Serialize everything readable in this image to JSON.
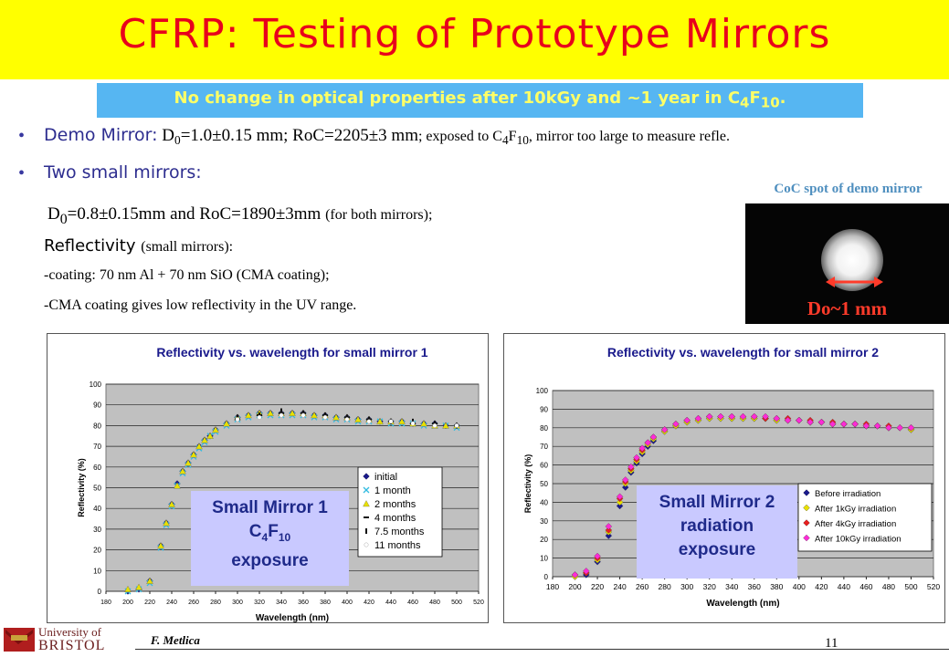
{
  "title": "CFRP: Testing of Prototype Mirrors",
  "banner": {
    "text": "No change in optical properties after  10kGy and ~1 year in ",
    "chem": "C",
    "chem_sub1": "4",
    "chem_f": "F",
    "chem_sub2": "10",
    "end": "."
  },
  "demo": {
    "label": "Demo Mirror:",
    "d0": " D",
    "d0_sub": "0",
    "rest1": "=1.0±0.15 mm; RoC=2205±3 mm",
    "rest2": "; exposed to C",
    "c_sub": "4",
    "f": "F",
    "f_sub": "10",
    "rest3": ", mirror too large to measure refle."
  },
  "small": {
    "label": "Two small mirrors:",
    "line1_a": "D",
    "line1_sub": "0",
    "line1_b": "=0.8±0.15mm and RoC=1890±3mm ",
    "line1_c": "(for both mirrors);",
    "line2_a": "Reflectivity ",
    "line2_b": "(small mirrors):",
    "line3": "-coating: 70 nm Al + 70 nm SiO (CMA coating);",
    "line4": "-CMA  coating gives low reflectivity in the UV range."
  },
  "coc": {
    "label": "CoC spot of demo mirror",
    "measure": "Do~1 mm"
  },
  "footer": {
    "author": "F. Metlica",
    "page": "11",
    "uni1": "University of",
    "uni2": "BRISTOL"
  },
  "chart1_label": {
    "l1": "Small Mirror 1",
    "l2a": "C",
    "l2s1": "4",
    "l2b": "F",
    "l2s2": "10",
    "l3": "exposure"
  },
  "chart2_label": {
    "l1": "Small Mirror 2",
    "l2": "radiation",
    "l3": "exposure"
  },
  "chart_data": [
    {
      "type": "scatter",
      "title": "Reflectivity vs. wavelength for small mirror 1",
      "xlabel": "Wavelength (nm)",
      "ylabel": "Reflectivity (%)",
      "xlim": [
        180,
        520
      ],
      "ylim": [
        0,
        100
      ],
      "xticks": [
        180,
        200,
        220,
        240,
        260,
        280,
        300,
        320,
        340,
        360,
        380,
        400,
        420,
        440,
        460,
        480,
        500,
        520
      ],
      "yticks": [
        0,
        10,
        20,
        30,
        40,
        50,
        60,
        70,
        80,
        90,
        100
      ],
      "grid": true,
      "legend_placement": "right",
      "series": [
        {
          "name": "initial",
          "x": [
            200,
            210,
            220,
            230,
            235,
            240,
            245,
            250,
            255,
            260,
            265,
            270,
            275,
            280,
            290,
            300,
            310,
            320,
            330,
            340,
            350,
            360,
            370,
            380,
            390,
            400,
            410,
            420,
            430,
            440,
            450,
            460,
            470,
            480,
            490,
            500
          ],
          "y": [
            0,
            1,
            5,
            22,
            33,
            42,
            52,
            58,
            62,
            66,
            70,
            73,
            75,
            78,
            81,
            84,
            85,
            86,
            86,
            86,
            86,
            86,
            85,
            85,
            84,
            84,
            83,
            83,
            82,
            82,
            82,
            81,
            81,
            81,
            80,
            80
          ],
          "color": "#1a1a8c",
          "marker": "diamond"
        },
        {
          "name": "1 month",
          "x": [
            200,
            210,
            220,
            230,
            235,
            240,
            245,
            250,
            255,
            260,
            265,
            270,
            275,
            280,
            290,
            300,
            310,
            320,
            330,
            340,
            350,
            360,
            370,
            380,
            390,
            400,
            410,
            420,
            430,
            440,
            450,
            460,
            470,
            480,
            490,
            500
          ],
          "y": [
            0,
            1,
            4,
            21,
            32,
            41,
            51,
            57,
            61,
            65,
            69,
            72,
            75,
            77,
            80,
            83,
            84,
            85,
            85,
            85,
            85,
            85,
            84,
            84,
            83,
            83,
            82,
            82,
            82,
            81,
            81,
            81,
            80,
            80,
            80,
            79
          ],
          "color": "#33bbe0",
          "marker": "x"
        },
        {
          "name": "2 months",
          "x": [
            200,
            210,
            220,
            230,
            235,
            240,
            245,
            250,
            255,
            260,
            265,
            270,
            275,
            280,
            290,
            300,
            310,
            320,
            330,
            340,
            350,
            360,
            370,
            380,
            390,
            400,
            410,
            420,
            430,
            440,
            450,
            460,
            470,
            480,
            490,
            500
          ],
          "y": [
            1,
            2,
            5,
            22,
            33,
            42,
            51,
            58,
            62,
            66,
            70,
            73,
            75,
            78,
            81,
            84,
            85,
            86,
            86,
            86,
            86,
            86,
            85,
            85,
            84,
            84,
            83,
            83,
            82,
            82,
            82,
            81,
            81,
            80,
            80,
            80
          ],
          "color": "#e8e000",
          "marker": "triangle"
        },
        {
          "name": "4 months",
          "x": [
            300,
            320,
            340,
            360,
            380,
            400,
            420,
            440,
            460,
            480,
            500
          ],
          "y": [
            83,
            85,
            86,
            86,
            85,
            84,
            83,
            82,
            81,
            81,
            80
          ],
          "color": "#111111",
          "marker": "dash"
        },
        {
          "name": "7.5 months",
          "x": [
            300,
            320,
            340,
            360,
            380,
            400,
            420,
            440,
            460,
            480,
            500
          ],
          "y": [
            84,
            85,
            87,
            86,
            85,
            84,
            83,
            82,
            82,
            81,
            80
          ],
          "color": "#111111",
          "marker": "bar"
        },
        {
          "name": "11 months",
          "x": [
            300,
            320,
            340,
            360,
            380,
            400,
            420,
            440,
            460,
            480,
            500
          ],
          "y": [
            83,
            84,
            85,
            85,
            84,
            83,
            82,
            82,
            81,
            80,
            80
          ],
          "color": "#ffffff",
          "marker": "circle"
        }
      ]
    },
    {
      "type": "scatter",
      "title": "Reflectivity vs. wavelength for small mirror 2",
      "xlabel": "Wavelength (nm)",
      "ylabel": "Reflectivity (%)",
      "xlim": [
        180,
        520
      ],
      "ylim": [
        0,
        100
      ],
      "xticks": [
        180,
        200,
        220,
        240,
        260,
        280,
        300,
        320,
        340,
        360,
        380,
        400,
        420,
        440,
        460,
        480,
        500,
        520
      ],
      "yticks": [
        0,
        10,
        20,
        30,
        40,
        50,
        60,
        70,
        80,
        90,
        100
      ],
      "grid": true,
      "legend_placement": "right",
      "series": [
        {
          "name": "Before irradiation",
          "x": [
            200,
            210,
            220,
            230,
            240,
            245,
            250,
            255,
            260,
            265,
            270,
            280,
            290,
            300,
            310,
            320,
            330,
            340,
            350,
            360,
            370,
            380,
            390,
            400,
            410,
            420,
            430,
            440,
            450,
            460,
            470,
            480,
            490,
            500
          ],
          "y": [
            0,
            1,
            8,
            22,
            38,
            48,
            56,
            61,
            66,
            70,
            73,
            78,
            81,
            83,
            84,
            85,
            85,
            85,
            85,
            85,
            85,
            84,
            84,
            84,
            83,
            83,
            82,
            82,
            82,
            81,
            81,
            80,
            80,
            79
          ],
          "color": "#1a1a8c",
          "marker": "diamond"
        },
        {
          "name": "After 1kGy irradiation",
          "x": [
            200,
            210,
            220,
            230,
            240,
            245,
            250,
            255,
            260,
            265,
            270,
            280,
            290,
            300,
            310,
            320,
            330,
            340,
            350,
            360,
            370,
            380,
            390,
            400,
            410,
            420,
            430,
            440,
            450,
            460,
            470,
            480,
            490,
            500
          ],
          "y": [
            0,
            2,
            9,
            24,
            40,
            50,
            57,
            62,
            67,
            71,
            74,
            78,
            81,
            83,
            84,
            85,
            85,
            85,
            85,
            85,
            85,
            84,
            84,
            84,
            83,
            83,
            82,
            82,
            82,
            81,
            81,
            80,
            80,
            79
          ],
          "color": "#e8e000",
          "marker": "diamond"
        },
        {
          "name": "After 4kGy irradiation",
          "x": [
            200,
            210,
            220,
            230,
            240,
            245,
            250,
            255,
            260,
            265,
            270,
            280,
            290,
            300,
            310,
            320,
            330,
            340,
            350,
            360,
            370,
            380,
            390,
            400,
            410,
            420,
            430,
            440,
            450,
            460,
            470,
            480,
            490,
            500
          ],
          "y": [
            1,
            2,
            10,
            25,
            42,
            51,
            58,
            63,
            68,
            72,
            75,
            79,
            82,
            84,
            85,
            86,
            86,
            86,
            86,
            86,
            85,
            85,
            85,
            84,
            84,
            83,
            83,
            82,
            82,
            82,
            81,
            81,
            80,
            80
          ],
          "color": "#e81f1f",
          "marker": "diamond"
        },
        {
          "name": "After 10kGy irradiation",
          "x": [
            200,
            210,
            220,
            230,
            240,
            245,
            250,
            255,
            260,
            265,
            270,
            280,
            290,
            300,
            310,
            320,
            330,
            340,
            350,
            360,
            370,
            380,
            390,
            400,
            410,
            420,
            430,
            440,
            450,
            460,
            470,
            480,
            490,
            500
          ],
          "y": [
            1,
            3,
            11,
            27,
            43,
            52,
            59,
            64,
            69,
            72,
            75,
            79,
            82,
            84,
            85,
            86,
            86,
            86,
            86,
            86,
            86,
            85,
            84,
            84,
            83,
            83,
            82,
            82,
            82,
            81,
            81,
            80,
            80,
            80
          ],
          "color": "#ff2bd6",
          "marker": "diamond"
        }
      ]
    }
  ]
}
